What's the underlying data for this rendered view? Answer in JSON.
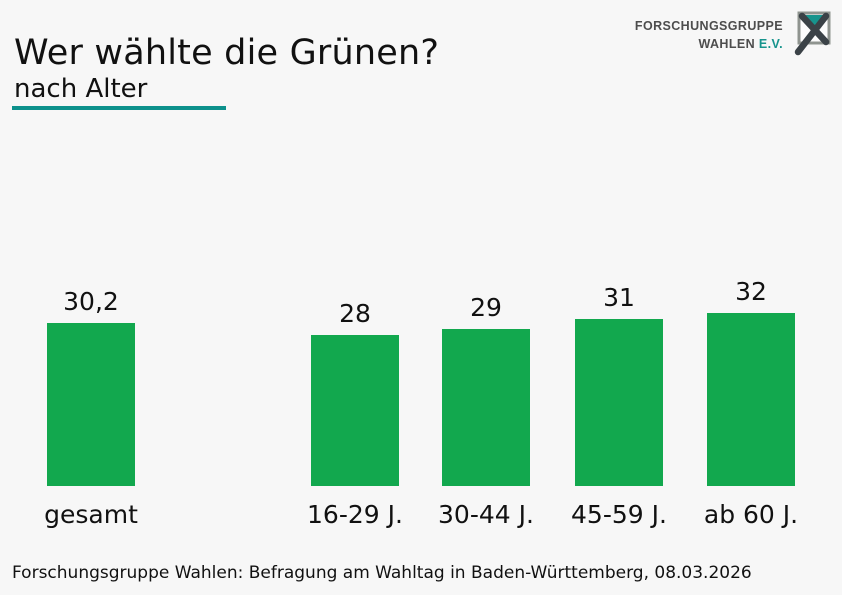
{
  "header": {
    "title": "Wer wählte die Grünen?",
    "subtitle": "nach Alter"
  },
  "logo": {
    "line1": "FORSCHUNGSGRUPPE",
    "line2": "WAHLEN",
    "line2_suffix": "E.V."
  },
  "chart_data": {
    "type": "bar",
    "title": "Wer wählte die Grünen?",
    "subtitle": "nach Alter",
    "categories": [
      "gesamt",
      "16-29 J.",
      "30-44 J.",
      "45-59 J.",
      "ab 60 J."
    ],
    "values": [
      30.2,
      28,
      29,
      31,
      32
    ],
    "value_labels": [
      "30,2",
      "28",
      "29",
      "31",
      "32"
    ],
    "unit": "percent of voters",
    "ylim": [
      0,
      35
    ],
    "grid": false,
    "legend": "none",
    "bar_color": "#12a84e"
  },
  "colors": {
    "background": "#f7f7f7",
    "bar_green": "#12a84e",
    "accent_teal": "#0d918c",
    "logo_teal": "#17948d",
    "logo_gray": "#4d4d4d",
    "text": "#111111"
  },
  "footer": {
    "source": "Forschungsgruppe Wahlen: Befragung am Wahltag in Baden-Württemberg, 08.03.2026"
  }
}
